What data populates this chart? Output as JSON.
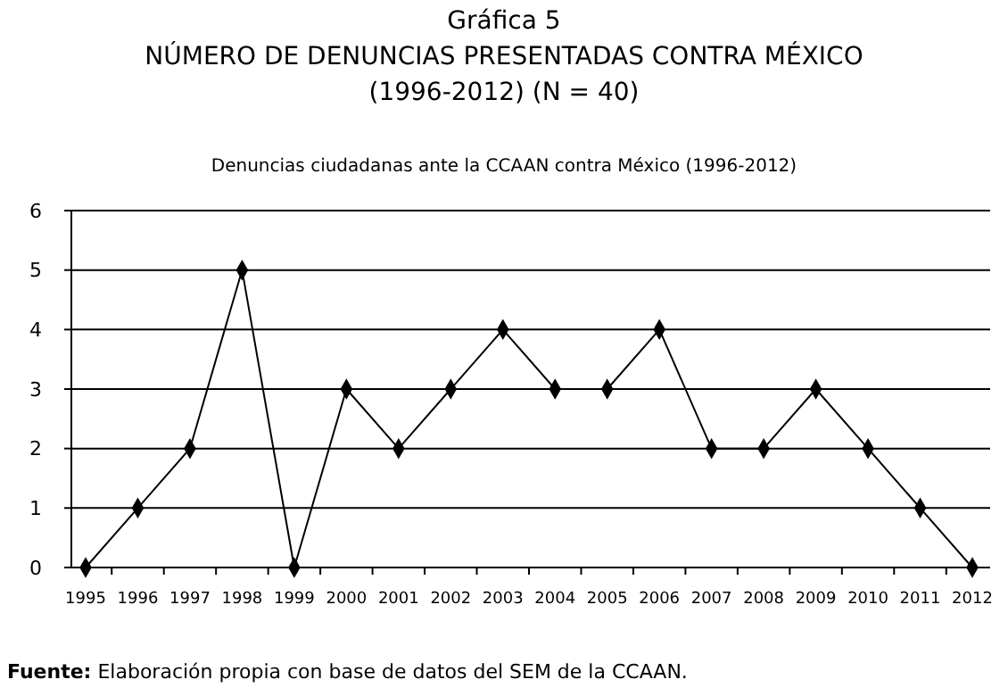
{
  "chart_data": {
    "type": "line",
    "title": "Gráfica 5",
    "subtitle": "NÚMERO DE DENUNCIAS PRESENTADAS CONTRA MÉXICO\n(1996-2012) (N = 40)",
    "annotations": [
      "Denuncias ciudadanas ante la CCAAN contra México (1996-2012)",
      "Fuente: Elaboración propia con base de datos del SEM de la CCAAN."
    ],
    "categories": [
      "1995",
      "1996",
      "1997",
      "1998",
      "1999",
      "2000",
      "2001",
      "2002",
      "2003",
      "2004",
      "2005",
      "2006",
      "2007",
      "2008",
      "2009",
      "2010",
      "2011",
      "2012"
    ],
    "series": [
      {
        "color": "#000000",
        "values": [
          0,
          1,
          2,
          5,
          0,
          3,
          2,
          3,
          4,
          3,
          3,
          4,
          2,
          2,
          3,
          2,
          1,
          0
        ]
      }
    ],
    "ylim": [
      0,
      6
    ],
    "yticks": [
      0,
      1,
      2,
      3,
      4,
      5,
      6
    ],
    "grid": "y",
    "marker": "diamond",
    "line_style": "solid"
  }
}
